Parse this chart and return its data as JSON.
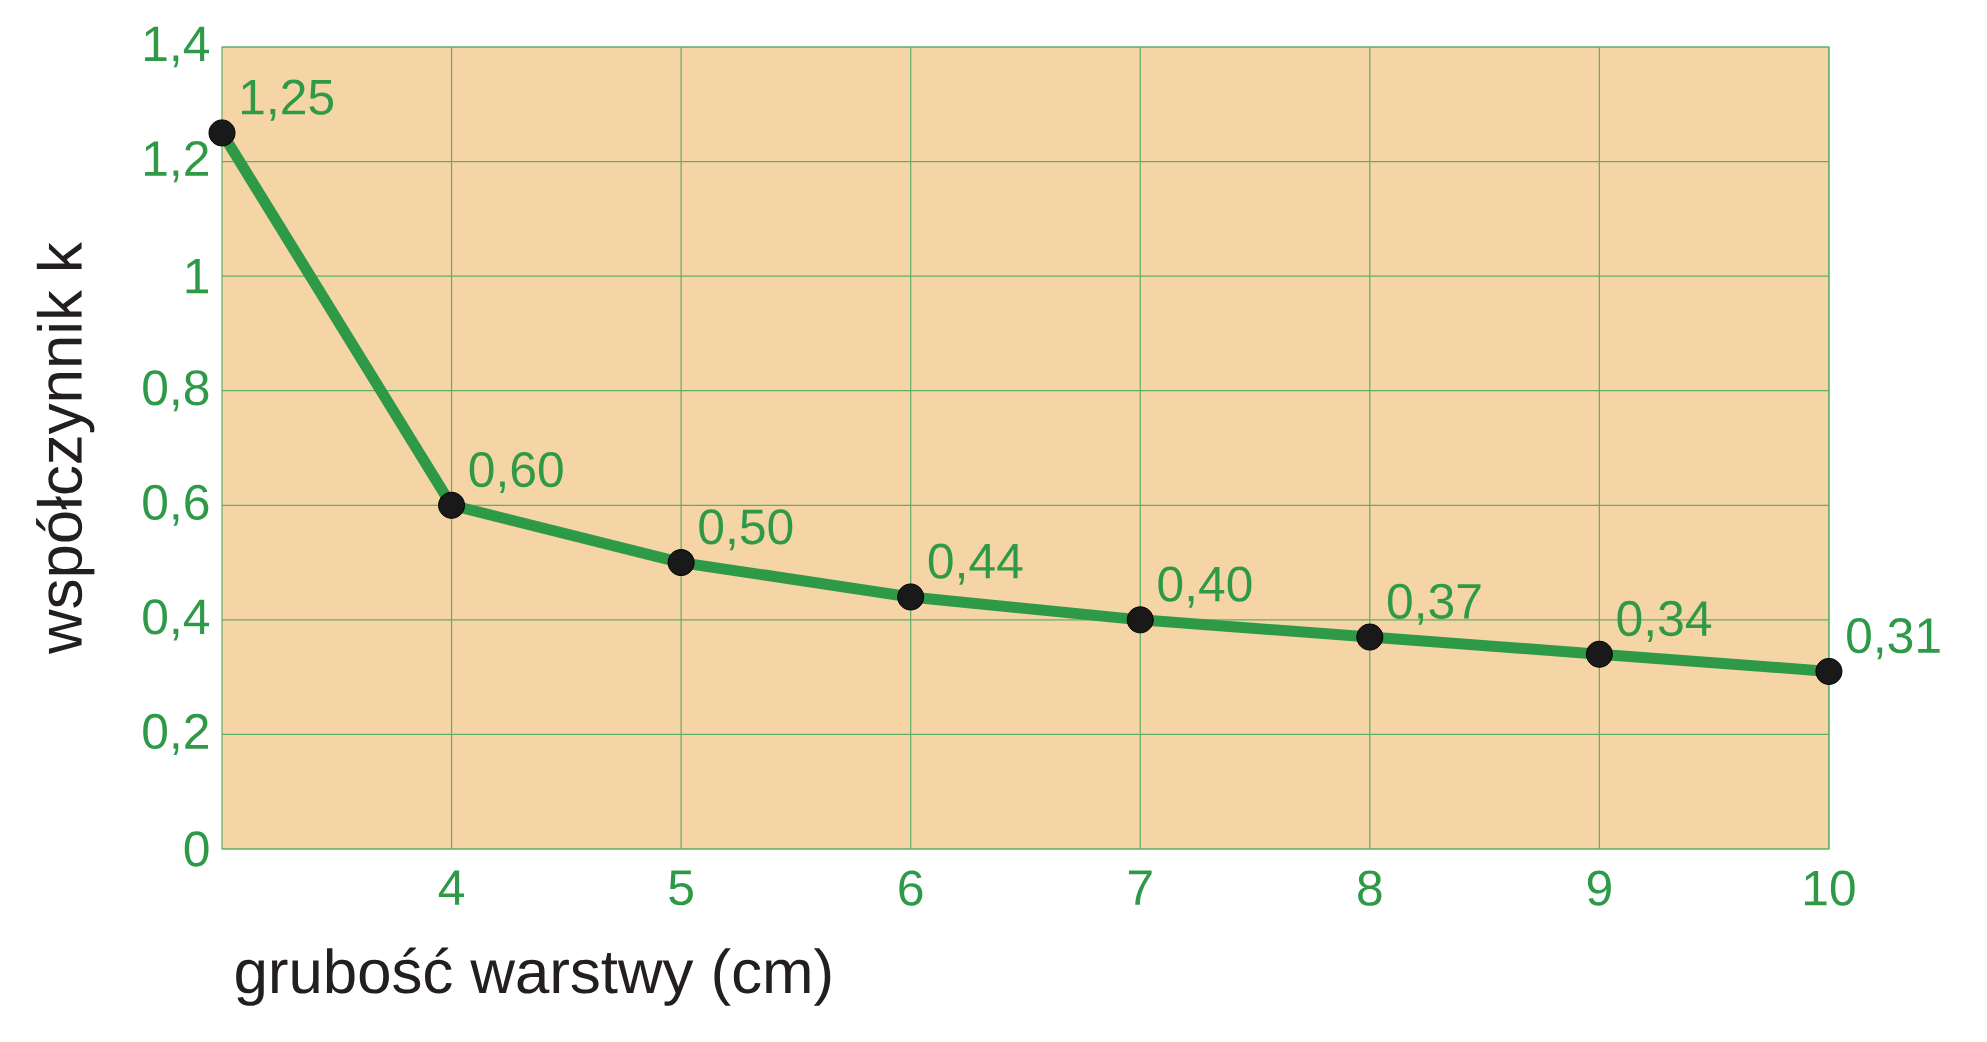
{
  "chart_data": {
    "type": "line",
    "xlabel": "grubość warstwy (cm)",
    "ylabel": "współczynnik k",
    "x": [
      3,
      4,
      5,
      6,
      7,
      8,
      9,
      10
    ],
    "values": [
      1.25,
      0.6,
      0.5,
      0.44,
      0.4,
      0.37,
      0.34,
      0.31
    ],
    "value_labels": [
      "1,25",
      "0,60",
      "0,50",
      "0,44",
      "0,40",
      "0,37",
      "0,34",
      "0,31"
    ],
    "color": "#2e9a47",
    "xlim": [
      3,
      10
    ],
    "xticks": [
      4,
      5,
      6,
      7,
      8,
      9,
      10
    ],
    "ylim": [
      0,
      1.4
    ],
    "yticks": [
      0,
      {
        "value": 0.2,
        "label": "0,2"
      },
      {
        "value": 0.4,
        "label": "0,4"
      },
      {
        "value": 0.6,
        "label": "0,6"
      },
      {
        "value": 0.8,
        "label": "0,8"
      },
      1,
      {
        "value": 1.2,
        "label": "1,2"
      },
      {
        "value": 1.4,
        "label": "1,4"
      }
    ],
    "grid": true,
    "marker": "circle",
    "line_style": "solid"
  }
}
